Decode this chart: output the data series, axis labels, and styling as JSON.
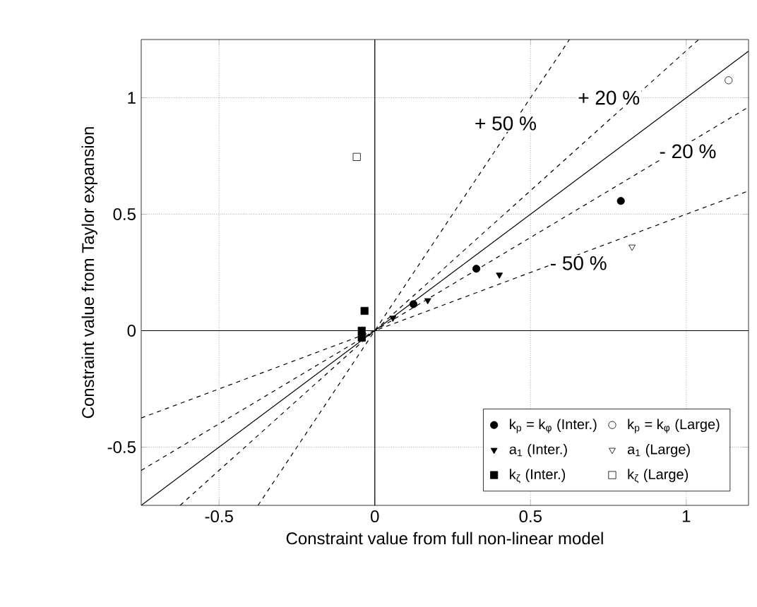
{
  "chart_data": {
    "type": "scatter",
    "xlabel": "Constraint value from full non-linear model",
    "ylabel": "Constraint value from Taylor expansion",
    "xlim": [
      -0.75,
      1.2
    ],
    "ylim": [
      -0.75,
      1.25
    ],
    "xticks": [
      -0.5,
      0,
      0.5,
      1
    ],
    "yticks": [
      -0.5,
      0,
      0.5,
      1
    ],
    "grid": true,
    "legend": "bottom right",
    "series": [
      {
        "name": "k$_{p}$ = k$_{φ}$ (Inter.)",
        "color": "#000000",
        "marker": "circle",
        "x": [
          0.79,
          0.326,
          0.124
        ],
        "values": [
          0.557,
          0.266,
          0.114
        ]
      },
      {
        "name": "k$_{p}$ = k$_{φ}$ (Large)",
        "color": "#000000",
        "marker": "circle",
        "x": [
          1.136
        ],
        "values": [
          1.075
        ]
      },
      {
        "name": "a$_{1}$ (Inter.)",
        "color": "#000000",
        "marker": "triangle",
        "x": [
          0.4,
          0.17,
          0.058
        ],
        "values": [
          0.24,
          0.13,
          0.055
        ]
      },
      {
        "name": "a$_{1}$ (Large)",
        "color": "#000000",
        "marker": "triangle",
        "x": [
          0.826
        ],
        "values": [
          0.36
        ]
      },
      {
        "name": "k$_{ζ}$ (Inter.)",
        "color": "#000000",
        "marker": "square",
        "x": [
          -0.033,
          -0.042,
          -0.042
        ],
        "values": [
          0.085,
          0.0,
          -0.03
        ]
      },
      {
        "name": "k$_{ζ}$ (Large)",
        "color": "#000000",
        "marker": "square",
        "x": [
          -0.058
        ],
        "values": [
          0.746
        ]
      },
      {
        "type": "line",
        "color": "#000000",
        "line_style": "solid",
        "marker": "none",
        "x": [
          0,
          0
        ],
        "values": [
          -0.75,
          1.25
        ]
      },
      {
        "type": "line",
        "color": "#000000",
        "line_style": "solid",
        "marker": "none",
        "x": [
          -0.75,
          1.2
        ],
        "values": [
          0,
          0
        ]
      },
      {
        "type": "line",
        "color": "#000000",
        "line_style": "solid",
        "marker": "none",
        "x": [
          -0.75,
          1.2
        ],
        "values": [
          -0.75,
          1.2
        ]
      },
      {
        "type": "line",
        "color": "#000000",
        "line_style": "dashed",
        "marker": "none",
        "x": [
          -0.375,
          0.625
        ],
        "values": [
          -0.75,
          1.25
        ]
      },
      {
        "type": "line",
        "color": "#000000",
        "line_style": "dashed",
        "marker": "none",
        "x": [
          -0.625,
          1.04
        ],
        "values": [
          -0.75,
          1.25
        ]
      },
      {
        "type": "line",
        "color": "#000000",
        "line_style": "dashed",
        "marker": "none",
        "x": [
          -0.75,
          1.2
        ],
        "values": [
          -0.6,
          0.96
        ]
      },
      {
        "type": "line",
        "color": "#000000",
        "line_style": "dashed",
        "marker": "none",
        "x": [
          -0.75,
          1.2
        ],
        "values": [
          -0.375,
          0.6
        ]
      }
    ],
    "annotations": [
      "+ 20 %",
      "+ 50 %",
      "- 20 %",
      "- 50 %"
    ]
  }
}
